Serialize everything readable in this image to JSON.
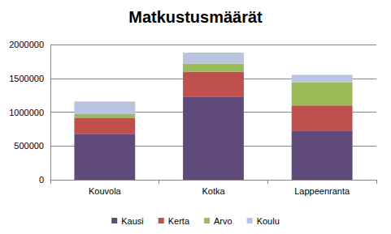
{
  "chart_data": {
    "type": "bar",
    "title": "Matkustusmäärät",
    "categories": [
      "Kouvola",
      "Kotka",
      "Lappeenranta"
    ],
    "series": [
      {
        "name": "Kausi",
        "color": "#604a7b",
        "values": [
          680000,
          1230000,
          720000
        ]
      },
      {
        "name": "Kerta",
        "color": "#c0504d",
        "values": [
          230000,
          370000,
          380000
        ]
      },
      {
        "name": "Arvo",
        "color": "#9bbb59",
        "values": [
          60000,
          120000,
          340000
        ]
      },
      {
        "name": "Koulu",
        "color": "#b9c4e0",
        "values": [
          190000,
          160000,
          110000
        ]
      }
    ],
    "ylim": [
      0,
      2000000
    ],
    "yticks": [
      0,
      500000,
      1000000,
      1500000,
      2000000
    ],
    "grid": true,
    "stacked": true,
    "legend": "bottom"
  }
}
